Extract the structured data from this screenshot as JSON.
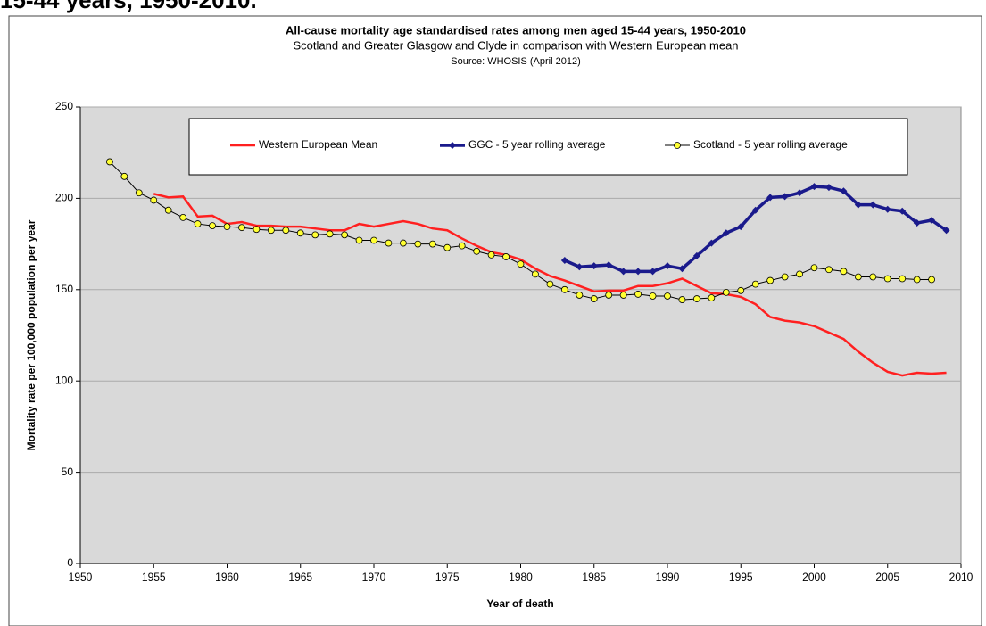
{
  "heading": "15-44 years, 1950-2010.",
  "chart_data": {
    "type": "line",
    "title": "All-cause mortality age standardised rates among men aged 15-44 years, 1950-2010",
    "subtitle": "Scotland and Greater Glasgow and Clyde in comparison with Western European mean",
    "source": "Source: WHOSIS (April 2012)",
    "x_label": "Year of death",
    "y_label": "Mortality rate per 100,000 population per year",
    "x": [
      1952,
      1953,
      1954,
      1955,
      1956,
      1957,
      1958,
      1959,
      1960,
      1961,
      1962,
      1963,
      1964,
      1965,
      1966,
      1967,
      1968,
      1969,
      1970,
      1971,
      1972,
      1973,
      1974,
      1975,
      1976,
      1977,
      1978,
      1979,
      1980,
      1981,
      1982,
      1983,
      1984,
      1985,
      1986,
      1987,
      1988,
      1989,
      1990,
      1991,
      1992,
      1993,
      1994,
      1995,
      1996,
      1997,
      1998,
      1999,
      2000,
      2001,
      2002,
      2003,
      2004,
      2005,
      2006,
      2007,
      2008,
      2009
    ],
    "series": [
      {
        "name": "Western European Mean",
        "color": "#ff2020",
        "marker": "none",
        "values": [
          null,
          null,
          null,
          202.5,
          200.5,
          201,
          190,
          190.5,
          186,
          187,
          185,
          185,
          184.5,
          184.5,
          183.5,
          182.5,
          182.5,
          186,
          184.5,
          186,
          187.5,
          186,
          183.5,
          182.5,
          178,
          174,
          170.5,
          169,
          166.5,
          161.5,
          157.5,
          155,
          152,
          149,
          149.5,
          149.5,
          152,
          152,
          153.5,
          156,
          152,
          148,
          147.5,
          146,
          142,
          135,
          133,
          132,
          130,
          126.5,
          123,
          116,
          110,
          105,
          103,
          104.5,
          104,
          104.5
        ]
      },
      {
        "name": "GGC - 5 year rolling average",
        "color": "#1a1a8c",
        "marker": "diamond",
        "values": [
          null,
          null,
          null,
          null,
          null,
          null,
          null,
          null,
          null,
          null,
          null,
          null,
          null,
          null,
          null,
          null,
          null,
          null,
          null,
          null,
          null,
          null,
          null,
          null,
          null,
          null,
          null,
          null,
          null,
          null,
          null,
          166,
          162.5,
          163,
          163.5,
          160,
          160,
          160,
          163,
          161.5,
          168.5,
          175.5,
          181,
          184.5,
          193.5,
          200.5,
          201,
          203,
          206.5,
          206,
          204,
          196.5,
          196.5,
          194,
          193,
          186.5,
          188,
          182.5
        ]
      },
      {
        "name": "Scotland - 5 year rolling average",
        "color": "#000000",
        "marker_color": "#ffff33",
        "marker": "circle",
        "values": [
          220,
          212,
          203,
          199,
          193.5,
          189.5,
          186,
          185,
          184.5,
          184,
          183,
          182.5,
          182.5,
          181,
          180,
          180.5,
          180,
          177,
          177,
          175.5,
          175.5,
          175,
          175,
          173,
          174,
          171,
          169,
          168,
          164,
          158.5,
          153,
          150,
          147,
          145,
          147,
          147,
          147.5,
          146.5,
          146.5,
          144.5,
          145,
          145.5,
          148.5,
          149.5,
          153,
          155,
          157,
          158.5,
          162,
          161,
          160,
          157,
          157,
          156,
          156,
          155.5,
          155.5,
          null
        ]
      }
    ],
    "xlim": [
      1950,
      2010
    ],
    "xticks": [
      1950,
      1955,
      1960,
      1965,
      1970,
      1975,
      1980,
      1985,
      1990,
      1995,
      2000,
      2005,
      2010
    ],
    "ylim": [
      0,
      250
    ],
    "yticks": [
      0,
      50,
      100,
      150,
      200,
      250
    ],
    "grid": true,
    "legend": "top"
  }
}
